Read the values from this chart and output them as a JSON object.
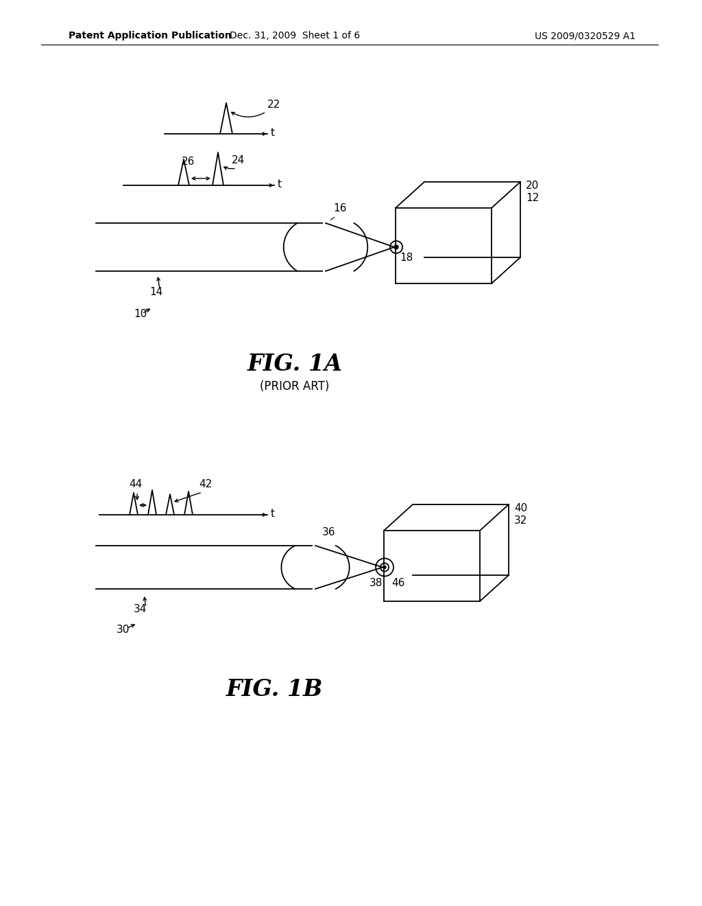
{
  "bg_color": "#ffffff",
  "header_left": "Patent Application Publication",
  "header_mid": "Dec. 31, 2009  Sheet 1 of 6",
  "header_right": "US 2009/0320529 A1",
  "fig1a_label": "FIG. 1A",
  "fig1a_sublabel": "(PRIOR ART)",
  "fig1b_label": "FIG. 1B",
  "line_color": "#000000",
  "font_size_header": 10,
  "font_size_fig": 24,
  "font_size_sublabel": 12,
  "font_size_ref": 11
}
